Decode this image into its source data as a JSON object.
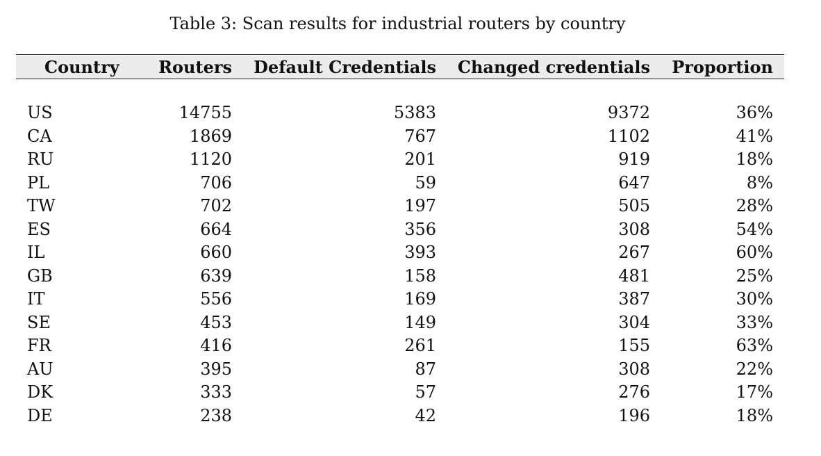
{
  "caption": "Table 3: Scan results for industrial routers by country",
  "table": {
    "headers": {
      "country": "Country",
      "routers": "Routers",
      "default_credentials": "Default Credentials",
      "changed_credentials": "Changed credentials",
      "proportion": "Proportion"
    },
    "rows": [
      {
        "country": "US",
        "routers": "14755",
        "default": "5383",
        "changed": "9372",
        "proportion": "36%"
      },
      {
        "country": "CA",
        "routers": "1869",
        "default": "767",
        "changed": "1102",
        "proportion": "41%"
      },
      {
        "country": "RU",
        "routers": "1120",
        "default": "201",
        "changed": "919",
        "proportion": "18%"
      },
      {
        "country": "PL",
        "routers": "706",
        "default": "59",
        "changed": "647",
        "proportion": "8%"
      },
      {
        "country": "TW",
        "routers": "702",
        "default": "197",
        "changed": "505",
        "proportion": "28%"
      },
      {
        "country": "ES",
        "routers": "664",
        "default": "356",
        "changed": "308",
        "proportion": "54%"
      },
      {
        "country": "IL",
        "routers": "660",
        "default": "393",
        "changed": "267",
        "proportion": "60%"
      },
      {
        "country": "GB",
        "routers": "639",
        "default": "158",
        "changed": "481",
        "proportion": "25%"
      },
      {
        "country": "IT",
        "routers": "556",
        "default": "169",
        "changed": "387",
        "proportion": "30%"
      },
      {
        "country": "SE",
        "routers": "453",
        "default": "149",
        "changed": "304",
        "proportion": "33%"
      },
      {
        "country": "FR",
        "routers": "416",
        "default": "261",
        "changed": "155",
        "proportion": "63%"
      },
      {
        "country": "AU",
        "routers": "395",
        "default": "87",
        "changed": "308",
        "proportion": "22%"
      },
      {
        "country": "DK",
        "routers": "333",
        "default": "57",
        "changed": "276",
        "proportion": "17%"
      },
      {
        "country": "DE",
        "routers": "238",
        "default": "42",
        "changed": "196",
        "proportion": "18%"
      }
    ]
  }
}
